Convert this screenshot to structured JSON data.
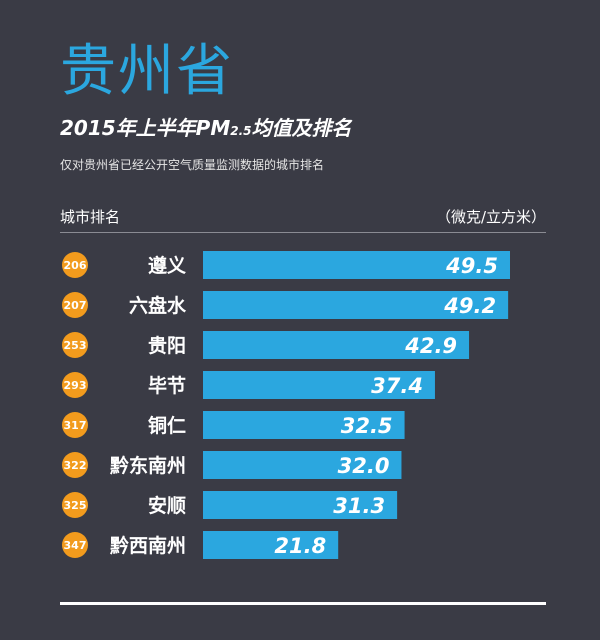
{
  "header": {
    "province": "贵州省",
    "title_pre": "2015年上半年PM",
    "title_sub": "2.5",
    "title_post": "均值及排名",
    "note": "仅对贵州省已经公开空气质量监测数据的城市排名",
    "col_left": "城市排名",
    "col_right": "（微克/立方米）"
  },
  "colors": {
    "bar": "#2ba7df",
    "badge": "#f29b1d",
    "background": "#3a3b45"
  },
  "chart_data": {
    "type": "bar",
    "orientation": "horizontal",
    "categories": [
      "遵义",
      "六盘水",
      "贵阳",
      "毕节",
      "铜仁",
      "黔东南州",
      "安顺",
      "黔西南州"
    ],
    "ranks": [
      "206",
      "207",
      "253",
      "293",
      "317",
      "322",
      "325",
      "347"
    ],
    "values": [
      49.5,
      49.2,
      42.9,
      37.4,
      32.5,
      32.0,
      31.3,
      21.8
    ],
    "value_labels": [
      "49.5",
      "49.2",
      "42.9",
      "37.4",
      "32.5",
      "32.0",
      "31.3",
      "21.8"
    ],
    "title": "2015年上半年PM2.5均值及排名",
    "unit": "（微克/立方米）",
    "xlim": [
      0,
      49.5
    ]
  }
}
